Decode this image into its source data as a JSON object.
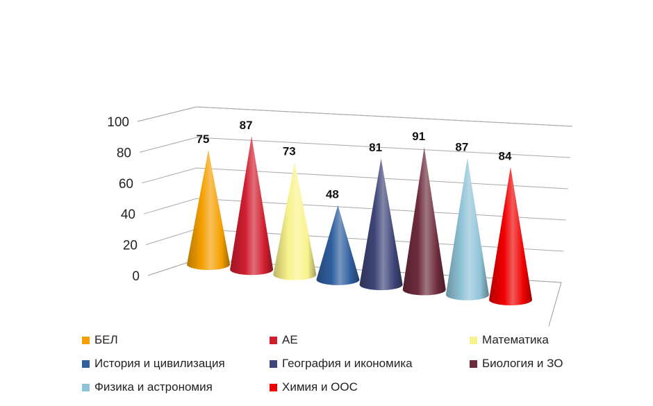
{
  "chart_data": {
    "type": "bar",
    "mark_shape": "3d-cone",
    "categories": [
      "БЕЛ",
      "АЕ",
      "Математика",
      "История и цивилизация",
      "География и икономика",
      "Биология и ЗО",
      "Физика и астрономия",
      "Химия и ООС"
    ],
    "values": [
      75,
      87,
      73,
      48,
      81,
      91,
      87,
      84
    ],
    "colors": [
      "#f5a000",
      "#d01e2e",
      "#f8f28c",
      "#2f5e9e",
      "#3e4577",
      "#6d2c3c",
      "#8fc3d7",
      "#f00000"
    ],
    "title": "",
    "xlabel": "",
    "ylabel": "",
    "ylim": [
      0,
      100
    ],
    "yticks": [
      "0",
      "20",
      "40",
      "60",
      "80",
      "100"
    ],
    "grid": true,
    "legend_position": "bottom"
  }
}
